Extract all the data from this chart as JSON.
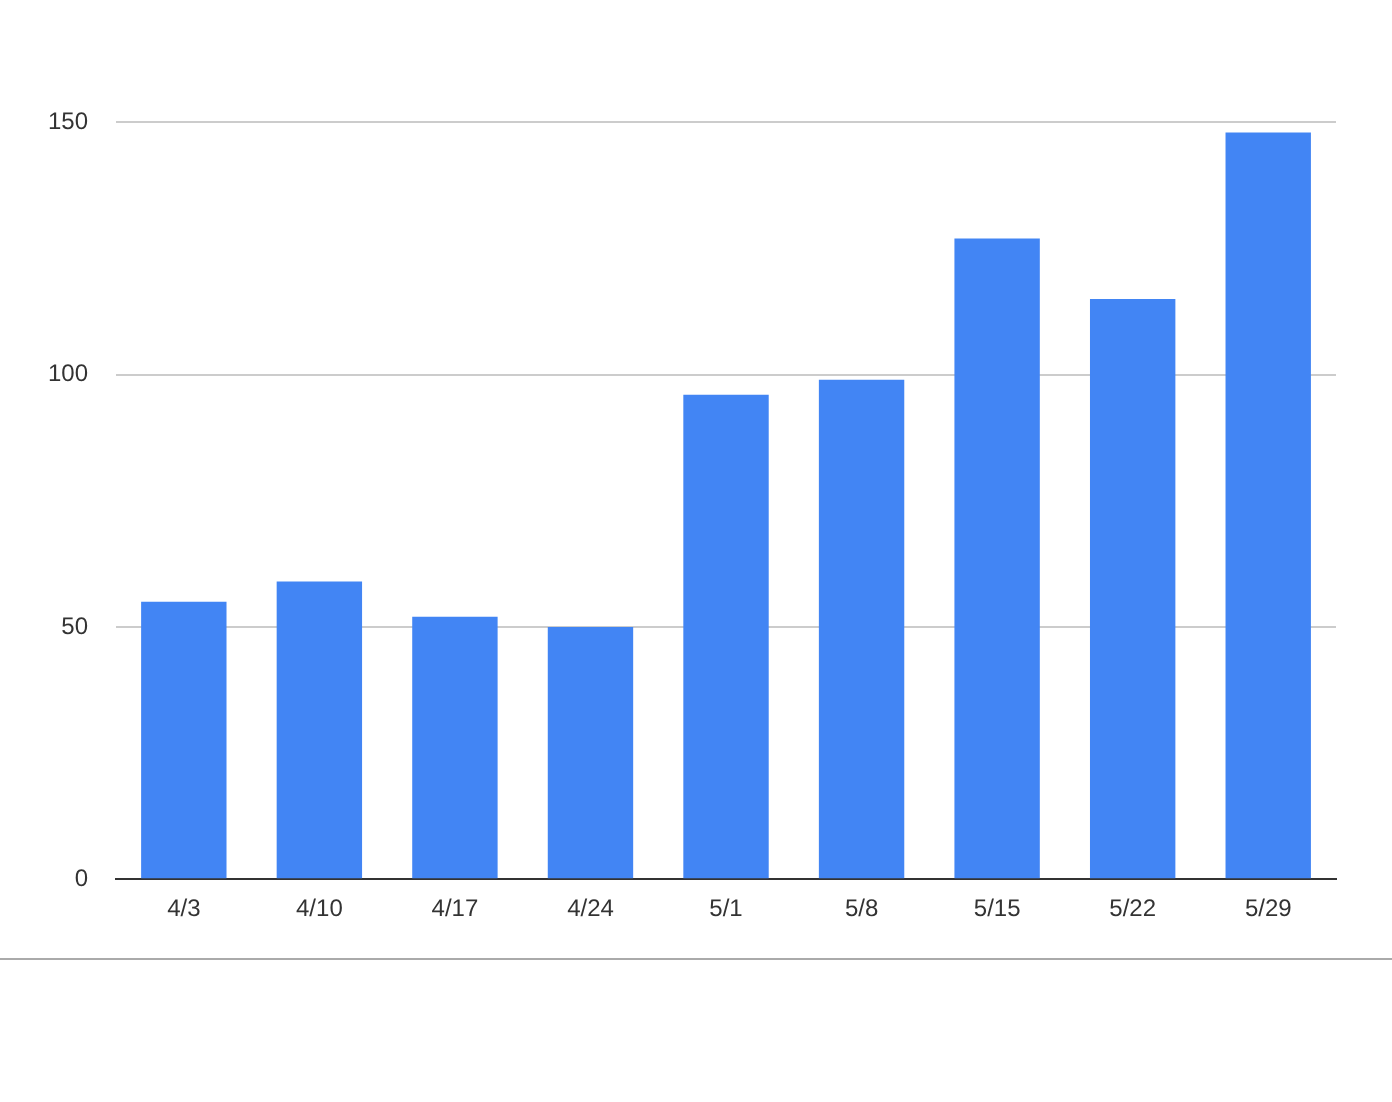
{
  "chart_data": {
    "type": "bar",
    "categories": [
      "4/3",
      "4/10",
      "4/17",
      "4/24",
      "5/1",
      "5/8",
      "5/15",
      "5/22",
      "5/29"
    ],
    "values": [
      55,
      59,
      52,
      50,
      96,
      99,
      127,
      115,
      148
    ],
    "color": "#4285f4",
    "ylim": [
      0,
      150
    ],
    "yticks": [
      0,
      50,
      100,
      150
    ],
    "grid": "y",
    "legend": false
  }
}
